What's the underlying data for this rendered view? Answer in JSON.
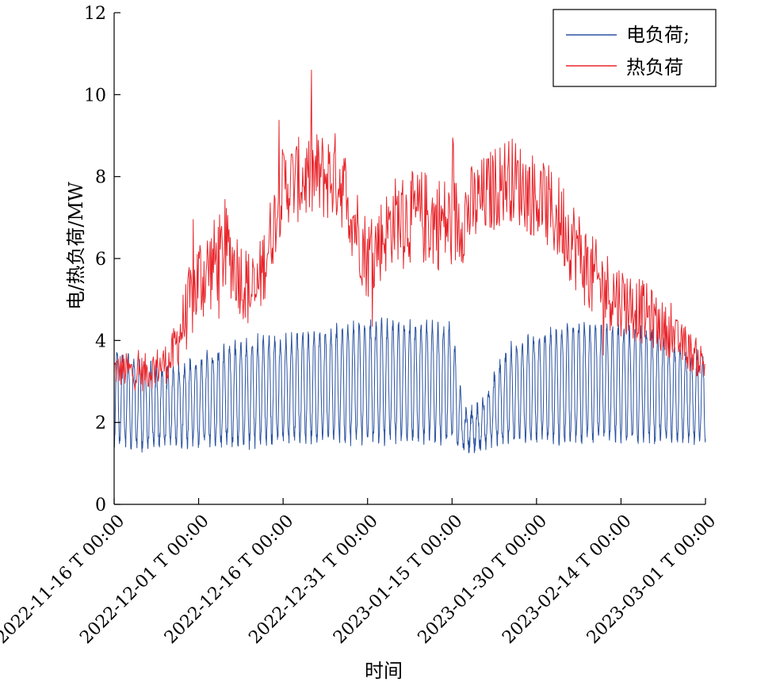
{
  "chart_data": {
    "type": "line",
    "title": "",
    "xlabel": "时间",
    "ylabel": "电/热负荷/MW",
    "ylim": [
      0,
      12
    ],
    "yticks": [
      "0",
      "2",
      "4",
      "6",
      "8",
      "10",
      "12"
    ],
    "xlim": [
      "2022-11-16",
      "2023-03-01"
    ],
    "xtick_values": [
      "2022-11-16",
      "2022-12-01",
      "2022-12-16",
      "2022-12-31",
      "2023-01-15",
      "2023-01-30",
      "2023-02-14",
      "2023-03-01"
    ],
    "xticks": [
      "2022-11-16 T 00:00",
      "2022-12-01 T 00:00",
      "2022-12-16 T 00:00",
      "2022-12-31 T 00:00",
      "2023-01-15 T 00:00",
      "2023-01-30 T 00:00",
      "2023-02-14 T 00:00",
      "2023-03-01 T 00:00"
    ],
    "grid": false,
    "legend_position": "top-right",
    "series": [
      {
        "name": "电负荷;",
        "color": "#2a52a0",
        "style": "daily-oscillating",
        "x": [
          "2022-11-16",
          "2022-11-21",
          "2022-11-26",
          "2022-12-01",
          "2022-12-06",
          "2022-12-11",
          "2022-12-16",
          "2022-12-21",
          "2022-12-26",
          "2022-12-31",
          "2023-01-05",
          "2023-01-10",
          "2023-01-15",
          "2023-01-17",
          "2023-01-20",
          "2023-01-25",
          "2023-01-30",
          "2023-02-04",
          "2023-02-09",
          "2023-02-14",
          "2023-02-19",
          "2023-02-24",
          "2023-03-01"
        ],
        "daily_low": [
          1.5,
          1.4,
          1.5,
          1.5,
          1.5,
          1.5,
          1.6,
          1.6,
          1.6,
          1.6,
          1.6,
          1.6,
          1.6,
          1.4,
          1.4,
          1.6,
          1.6,
          1.6,
          1.6,
          1.6,
          1.6,
          1.6,
          1.6
        ],
        "daily_high": [
          3.8,
          3.4,
          3.3,
          3.5,
          3.8,
          4.0,
          4.0,
          4.1,
          4.3,
          4.4,
          4.4,
          4.4,
          4.3,
          2.2,
          2.4,
          3.8,
          4.1,
          4.3,
          4.4,
          4.3,
          4.2,
          3.8,
          3.6
        ]
      },
      {
        "name": "热负荷",
        "color": "#e8262c",
        "style": "noisy",
        "x": [
          "2022-11-16",
          "2022-11-21",
          "2022-11-26",
          "2022-12-01",
          "2022-12-06",
          "2022-12-11",
          "2022-12-16",
          "2022-12-21",
          "2022-12-26",
          "2022-12-31",
          "2023-01-05",
          "2023-01-10",
          "2023-01-15",
          "2023-01-20",
          "2023-01-25",
          "2023-01-30",
          "2023-02-04",
          "2023-02-09",
          "2023-02-14",
          "2023-02-19",
          "2023-02-24",
          "2023-03-01"
        ],
        "values": [
          3.3,
          3.2,
          3.5,
          5.5,
          6.2,
          5.0,
          7.8,
          8.0,
          8.0,
          6.0,
          7.0,
          7.0,
          6.8,
          7.4,
          8.0,
          7.5,
          6.8,
          5.5,
          5.0,
          4.6,
          4.0,
          3.4
        ],
        "spread": [
          0.6,
          0.6,
          0.7,
          1.6,
          1.4,
          1.3,
          1.3,
          1.5,
          1.5,
          1.4,
          1.4,
          1.6,
          1.6,
          1.4,
          1.4,
          1.4,
          1.5,
          1.4,
          1.2,
          1.0,
          0.7,
          0.6
        ]
      }
    ]
  }
}
